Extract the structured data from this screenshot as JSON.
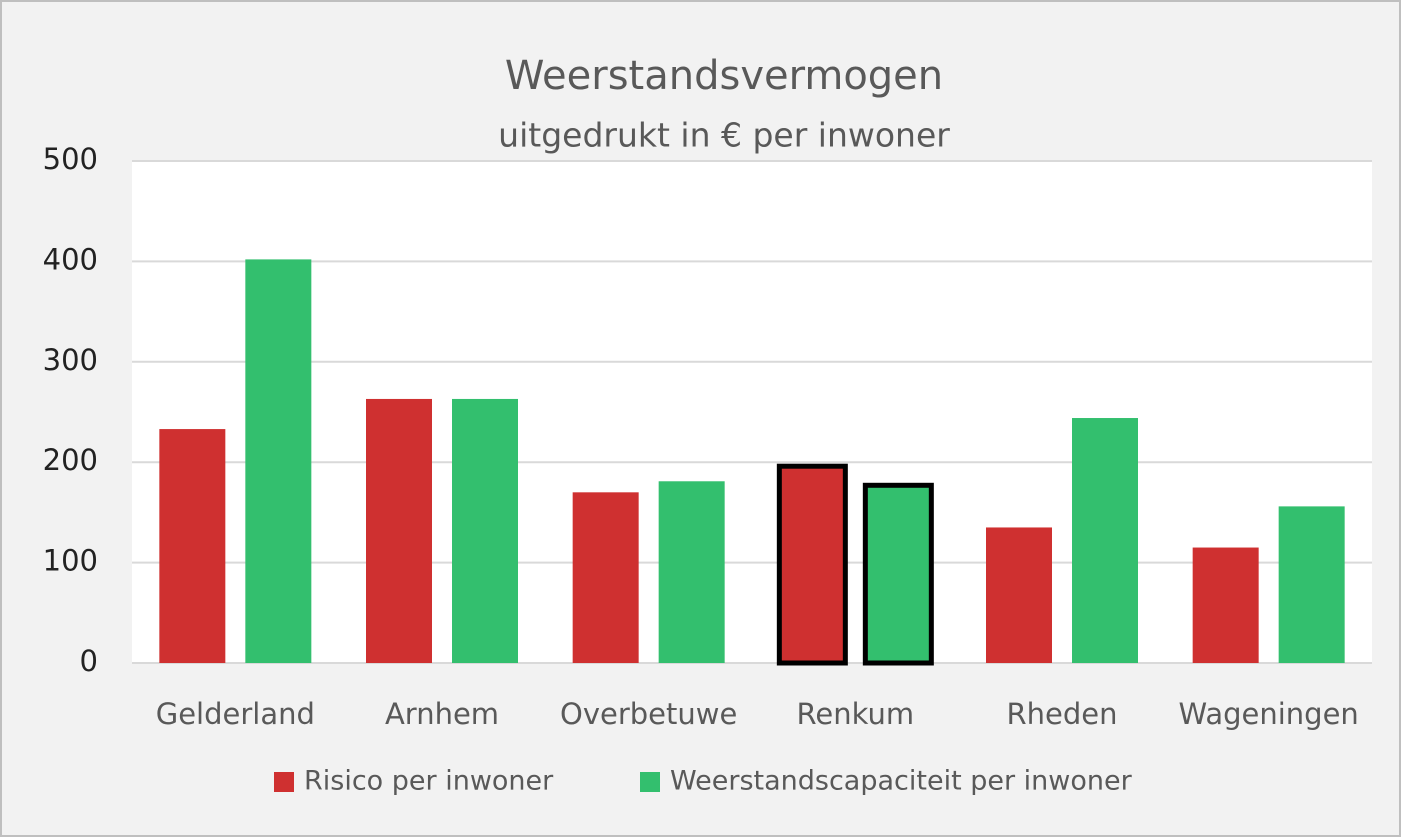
{
  "chart_data": {
    "type": "bar",
    "title": "Weerstandsvermogen",
    "subtitle": "uitgedrukt in € per inwoner",
    "categories": [
      "Gelderland",
      "Arnhem",
      "Overbetuwe",
      "Renkum",
      "Rheden",
      "Wageningen"
    ],
    "series": [
      {
        "name": "Risico per inwoner",
        "color": "#cf3030",
        "values": [
          233,
          263,
          170,
          196,
          135,
          115
        ]
      },
      {
        "name": "Weerstandscapaciteit per inwoner",
        "color": "#33bf6e",
        "values": [
          402,
          263,
          181,
          177,
          244,
          156
        ]
      }
    ],
    "ylim": [
      0,
      500
    ],
    "yticks": [
      0,
      100,
      200,
      300,
      400,
      500
    ],
    "grid": true,
    "legend": "bottom",
    "highlight_index": 3,
    "highlight_color": "#000000"
  }
}
